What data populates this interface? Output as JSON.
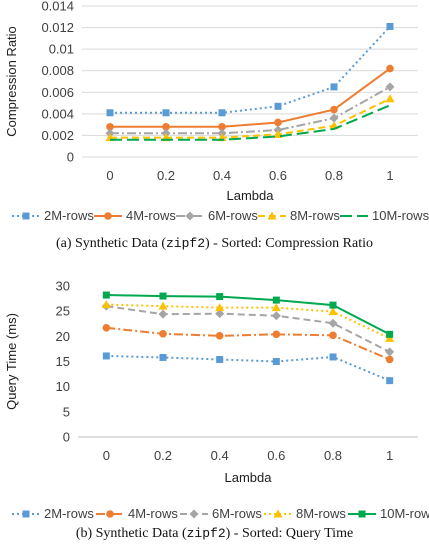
{
  "colors": {
    "2M-rows": "#5b9bd5",
    "4M-rows": "#ed7d31",
    "6M-rows": "#a5a5a5",
    "8M-rows": "#ffc000",
    "10M-rows": "#00a84f",
    "grid": "#d9d9d9",
    "axis": "#bfbfbf"
  },
  "chart_data": [
    {
      "type": "line",
      "title": "",
      "xlabel": "Lambda",
      "ylabel": "Compression Ratio",
      "x": [
        0,
        0.2,
        0.4,
        0.6,
        0.8,
        1
      ],
      "x_tick_labels": [
        "0",
        "0.2",
        "0.4",
        "0.6",
        "0.8",
        "1"
      ],
      "ylim": [
        0,
        0.014
      ],
      "y_ticks": [
        0,
        0.002,
        0.004,
        0.006,
        0.008,
        0.01,
        0.012,
        0.014
      ],
      "y_tick_labels": [
        "0",
        "0.002",
        "0.004",
        "0.006",
        "0.008",
        "0.01",
        "0.012",
        "0.014"
      ],
      "grid": true,
      "legend_position": "bottom",
      "series": [
        {
          "name": "2M-rows",
          "values": [
            0.0041,
            0.0041,
            0.0041,
            0.0047,
            0.0065,
            0.0121
          ],
          "dash": "dotted",
          "marker": "square"
        },
        {
          "name": "4M-rows",
          "values": [
            0.0028,
            0.0028,
            0.0028,
            0.0032,
            0.0044,
            0.0082
          ],
          "dash": "solid",
          "marker": "circle"
        },
        {
          "name": "6M-rows",
          "values": [
            0.0022,
            0.0022,
            0.0022,
            0.0025,
            0.0036,
            0.0065
          ],
          "dash": "dashdot",
          "marker": "diamond"
        },
        {
          "name": "8M-rows",
          "values": [
            0.0018,
            0.0018,
            0.0018,
            0.0021,
            0.0029,
            0.0054
          ],
          "dash": "dash",
          "marker": "triangle"
        },
        {
          "name": "10M-rows",
          "values": [
            0.0016,
            0.0016,
            0.0016,
            0.0019,
            0.0026,
            0.0048
          ],
          "dash": "longdash",
          "marker": "none"
        }
      ]
    },
    {
      "type": "line",
      "title": "",
      "xlabel": "Lambda",
      "ylabel": "Query Time (ms)",
      "x": [
        0,
        0.2,
        0.4,
        0.6,
        0.8,
        1
      ],
      "x_tick_labels": [
        "0",
        "0.2",
        "0.4",
        "0.6",
        "0.8",
        "1"
      ],
      "ylim": [
        0,
        30
      ],
      "y_ticks": [
        0,
        5,
        10,
        15,
        20,
        25,
        30
      ],
      "y_tick_labels": [
        "0",
        "5",
        "10",
        "15",
        "20",
        "25",
        "30"
      ],
      "grid": false,
      "legend_position": "bottom",
      "series": [
        {
          "name": "2M-rows",
          "values": [
            16.1,
            15.8,
            15.4,
            15.0,
            15.9,
            11.2
          ],
          "dash": "dotted",
          "marker": "square"
        },
        {
          "name": "4M-rows",
          "values": [
            21.7,
            20.5,
            20.1,
            20.4,
            20.2,
            15.4
          ],
          "dash": "dashdot",
          "marker": "circle"
        },
        {
          "name": "6M-rows",
          "values": [
            26.0,
            24.4,
            24.5,
            24.1,
            22.6,
            16.9
          ],
          "dash": "dash",
          "marker": "diamond"
        },
        {
          "name": "8M-rows",
          "values": [
            26.3,
            26.0,
            25.7,
            25.7,
            24.9,
            19.6
          ],
          "dash": "dotted",
          "marker": "triangle"
        },
        {
          "name": "10M-rows",
          "values": [
            28.2,
            28.0,
            27.9,
            27.2,
            26.2,
            20.4
          ],
          "dash": "solid",
          "marker": "square"
        }
      ]
    }
  ],
  "captions": [
    {
      "prefix": "(a) Synthetic Data (",
      "code": "zipf2",
      "suffix": ") - Sorted: Compression Ratio"
    },
    {
      "prefix": "(b) Synthetic Data (",
      "code": "zipf2",
      "suffix": ") - Sorted: Query Time"
    }
  ]
}
